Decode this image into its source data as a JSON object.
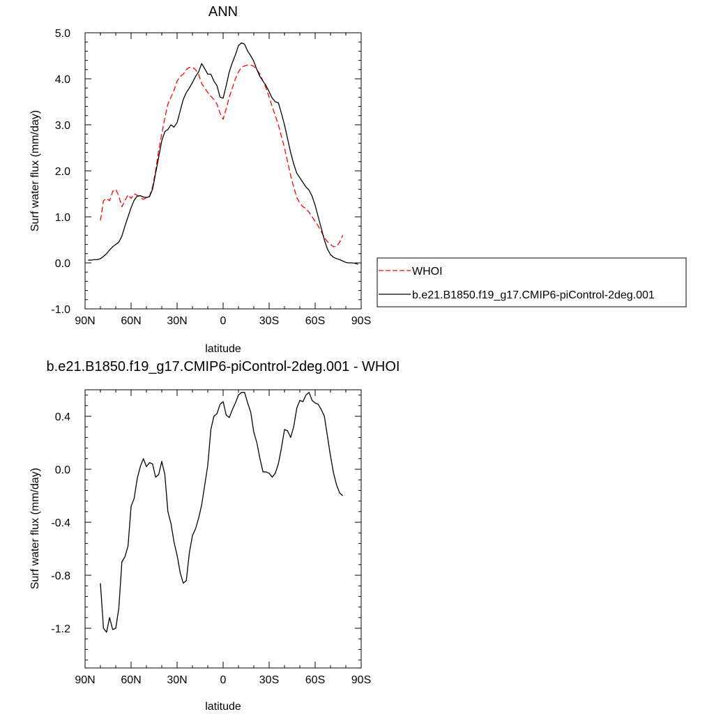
{
  "chart_data": [
    {
      "type": "line",
      "title": "ANN",
      "xlabel": "latitude",
      "ylabel": "Surf water flux (mm/day)",
      "xlim": [
        -90,
        90
      ],
      "ylim": [
        -1.0,
        5.0
      ],
      "x_tick_values": [
        -90,
        -60,
        -30,
        0,
        30,
        60,
        90
      ],
      "x_tick_labels": [
        "90N",
        "60N",
        "30N",
        "0",
        "30S",
        "60S",
        "90S"
      ],
      "y_tick_values": [
        -1.0,
        0.0,
        1.0,
        2.0,
        3.0,
        4.0,
        5.0
      ],
      "y_tick_labels": [
        "-1.0",
        "0.0",
        "1.0",
        "2.0",
        "3.0",
        "4.0",
        "5.0"
      ],
      "grid": false,
      "legend_position": "right",
      "series": [
        {
          "name": "WHOI",
          "color": "#ff0000",
          "dash": "dashed",
          "x": [
            -80,
            -78,
            -76,
            -74,
            -72,
            -70,
            -68,
            -66,
            -64,
            -62,
            -60,
            -58,
            -56,
            -54,
            -52,
            -50,
            -48,
            -46,
            -44,
            -42,
            -40,
            -38,
            -36,
            -34,
            -32,
            -30,
            -28,
            -26,
            -24,
            -22,
            -20,
            -18,
            -16,
            -14,
            -12,
            -10,
            -8,
            -6,
            -4,
            -2,
            0,
            2,
            4,
            6,
            8,
            10,
            12,
            14,
            16,
            18,
            20,
            22,
            24,
            26,
            28,
            30,
            32,
            34,
            36,
            38,
            40,
            42,
            44,
            46,
            48,
            50,
            52,
            54,
            56,
            58,
            60,
            62,
            64,
            66,
            68,
            70,
            72,
            74,
            76,
            78
          ],
          "y": [
            0.92,
            1.35,
            1.4,
            1.35,
            1.55,
            1.6,
            1.45,
            1.22,
            1.35,
            1.48,
            1.4,
            1.5,
            1.47,
            1.42,
            1.38,
            1.42,
            1.45,
            1.65,
            2.0,
            2.45,
            2.8,
            3.15,
            3.45,
            3.6,
            3.75,
            3.95,
            4.05,
            4.1,
            4.2,
            4.25,
            4.25,
            4.2,
            4.1,
            3.9,
            3.8,
            3.7,
            3.62,
            3.55,
            3.45,
            3.25,
            3.12,
            3.35,
            3.6,
            3.8,
            4.0,
            4.15,
            4.25,
            4.28,
            4.3,
            4.3,
            4.27,
            4.2,
            4.1,
            3.95,
            3.8,
            3.6,
            3.4,
            3.2,
            3.0,
            2.75,
            2.5,
            2.2,
            1.9,
            1.65,
            1.42,
            1.3,
            1.22,
            1.18,
            1.1,
            1.0,
            0.9,
            0.8,
            0.68,
            0.55,
            0.46,
            0.4,
            0.35,
            0.36,
            0.45,
            0.6
          ]
        },
        {
          "name": "b.e21.B1850.f19_g17.CMIP6-piControl-2deg.001",
          "color": "#000000",
          "dash": "solid",
          "x": [
            -88,
            -86,
            -84,
            -82,
            -80,
            -78,
            -76,
            -74,
            -72,
            -70,
            -68,
            -66,
            -64,
            -62,
            -60,
            -58,
            -56,
            -54,
            -52,
            -50,
            -48,
            -46,
            -44,
            -42,
            -40,
            -38,
            -36,
            -34,
            -32,
            -30,
            -28,
            -26,
            -24,
            -22,
            -20,
            -18,
            -16,
            -14,
            -12,
            -10,
            -8,
            -6,
            -4,
            -2,
            0,
            2,
            4,
            6,
            8,
            10,
            12,
            14,
            16,
            18,
            20,
            22,
            24,
            26,
            28,
            30,
            32,
            34,
            36,
            38,
            40,
            42,
            44,
            46,
            48,
            50,
            52,
            54,
            56,
            58,
            60,
            62,
            64,
            66,
            68,
            70,
            72,
            74,
            76,
            78,
            80,
            82,
            84,
            86,
            88
          ],
          "y": [
            0.06,
            0.06,
            0.07,
            0.07,
            0.09,
            0.14,
            0.2,
            0.28,
            0.35,
            0.4,
            0.45,
            0.58,
            0.8,
            1.0,
            1.2,
            1.36,
            1.45,
            1.46,
            1.43,
            1.42,
            1.44,
            1.6,
            1.95,
            2.3,
            2.65,
            2.85,
            2.9,
            3.0,
            2.95,
            3.05,
            3.3,
            3.55,
            3.7,
            3.8,
            3.92,
            4.05,
            4.15,
            4.33,
            4.22,
            4.1,
            4.1,
            3.95,
            3.85,
            3.6,
            3.58,
            3.85,
            4.15,
            4.35,
            4.52,
            4.72,
            4.78,
            4.75,
            4.6,
            4.5,
            4.38,
            4.2,
            4.05,
            3.95,
            3.85,
            3.72,
            3.58,
            3.5,
            3.48,
            3.25,
            3.0,
            2.7,
            2.4,
            2.15,
            1.95,
            1.85,
            1.75,
            1.65,
            1.58,
            1.45,
            1.25,
            1.0,
            0.75,
            0.5,
            0.3,
            0.18,
            0.12,
            0.09,
            0.07,
            0.04,
            0.01,
            0.0,
            0.0,
            -0.01,
            -0.03
          ]
        }
      ]
    },
    {
      "type": "line",
      "title": "b.e21.B1850.f19_g17.CMIP6-piControl-2deg.001 - WHOI",
      "xlabel": "latitude",
      "ylabel": "Surf water flux (mm/day)",
      "xlim": [
        -90,
        90
      ],
      "ylim": [
        -1.5,
        0.6
      ],
      "x_tick_values": [
        -90,
        -60,
        -30,
        0,
        30,
        60,
        90
      ],
      "x_tick_labels": [
        "90N",
        "60N",
        "30N",
        "0",
        "30S",
        "60S",
        "90S"
      ],
      "y_tick_values": [
        -1.2,
        -0.8,
        -0.4,
        0.0,
        0.4
      ],
      "y_tick_labels": [
        "-1.2",
        "-0.8",
        "-0.4",
        "0.0",
        "0.4"
      ],
      "grid": false,
      "series": [
        {
          "color": "#000000",
          "dash": "solid",
          "x": [
            -80,
            -78,
            -76,
            -74,
            -72,
            -70,
            -68,
            -66,
            -64,
            -62,
            -60,
            -58,
            -56,
            -54,
            -52,
            -50,
            -48,
            -46,
            -44,
            -42,
            -40,
            -38,
            -36,
            -34,
            -32,
            -30,
            -28,
            -26,
            -24,
            -22,
            -20,
            -18,
            -16,
            -14,
            -12,
            -10,
            -8,
            -6,
            -4,
            -2,
            0,
            2,
            4,
            6,
            8,
            10,
            12,
            14,
            16,
            18,
            20,
            22,
            24,
            26,
            28,
            30,
            32,
            34,
            36,
            38,
            40,
            42,
            44,
            46,
            48,
            50,
            52,
            54,
            56,
            58,
            60,
            62,
            64,
            66,
            68,
            70,
            72,
            74,
            76,
            78
          ],
          "y": [
            -0.86,
            -1.2,
            -1.23,
            -1.12,
            -1.21,
            -1.2,
            -1.05,
            -0.7,
            -0.66,
            -0.58,
            -0.28,
            -0.22,
            -0.07,
            0.02,
            0.08,
            0.02,
            0.05,
            0.04,
            -0.06,
            -0.04,
            0.06,
            -0.04,
            -0.32,
            -0.41,
            -0.55,
            -0.65,
            -0.78,
            -0.86,
            -0.84,
            -0.63,
            -0.5,
            -0.45,
            -0.37,
            -0.27,
            -0.12,
            0.03,
            0.3,
            0.4,
            0.42,
            0.49,
            0.51,
            0.41,
            0.39,
            0.45,
            0.5,
            0.56,
            0.58,
            0.58,
            0.5,
            0.43,
            0.28,
            0.2,
            0.08,
            -0.02,
            -0.02,
            -0.03,
            -0.06,
            -0.03,
            0.04,
            0.16,
            0.3,
            0.29,
            0.24,
            0.32,
            0.46,
            0.52,
            0.51,
            0.56,
            0.58,
            0.52,
            0.5,
            0.49,
            0.45,
            0.4,
            0.25,
            0.1,
            -0.03,
            -0.12,
            -0.18,
            -0.2
          ]
        }
      ]
    }
  ]
}
